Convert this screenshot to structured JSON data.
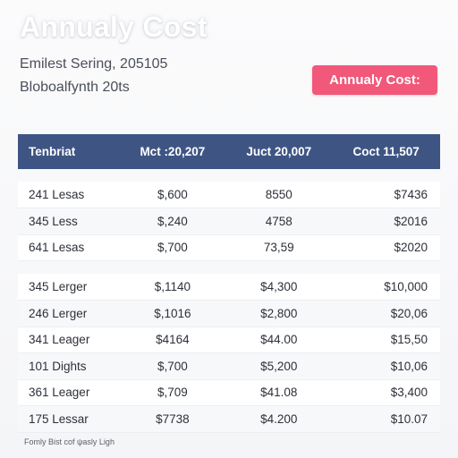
{
  "header": {
    "title": "Annualy Cost",
    "subtitle_line1": "Emilest Sering, 205105",
    "subtitle_line2": "Bloboalfynth 20ts",
    "cta_label": "Annualy Cost:"
  },
  "table": {
    "columns": [
      "Tenbriat",
      "Mct :20,207",
      "Juct 20,007",
      "Coct 11,507"
    ],
    "group1": [
      [
        "241 Lesas",
        "$,600",
        "8550",
        "$7436"
      ],
      [
        "345 Less",
        "$,240",
        "4758",
        "$2016"
      ],
      [
        "641 Lesas",
        "$,700",
        "73,59",
        "$2020"
      ]
    ],
    "group2": [
      [
        "345 Lerger",
        "$,1140",
        "$4,300",
        "$10,000"
      ],
      [
        "246 Lerger",
        "$,1016",
        "$2,800",
        "$20,06"
      ],
      [
        "341 Leager",
        "$4164",
        "$44.00",
        "$15,50"
      ],
      [
        "101 Dights",
        "$,700",
        "$5,200",
        "$10,06"
      ],
      [
        "361 Leager",
        "$,709",
        "$41.08",
        "$3,400"
      ],
      [
        "175 Lessar",
        "$7738",
        "$4.200",
        "$10.07"
      ]
    ]
  },
  "footer": {
    "note": "Fomly Bist cof ψasly Ligh"
  }
}
